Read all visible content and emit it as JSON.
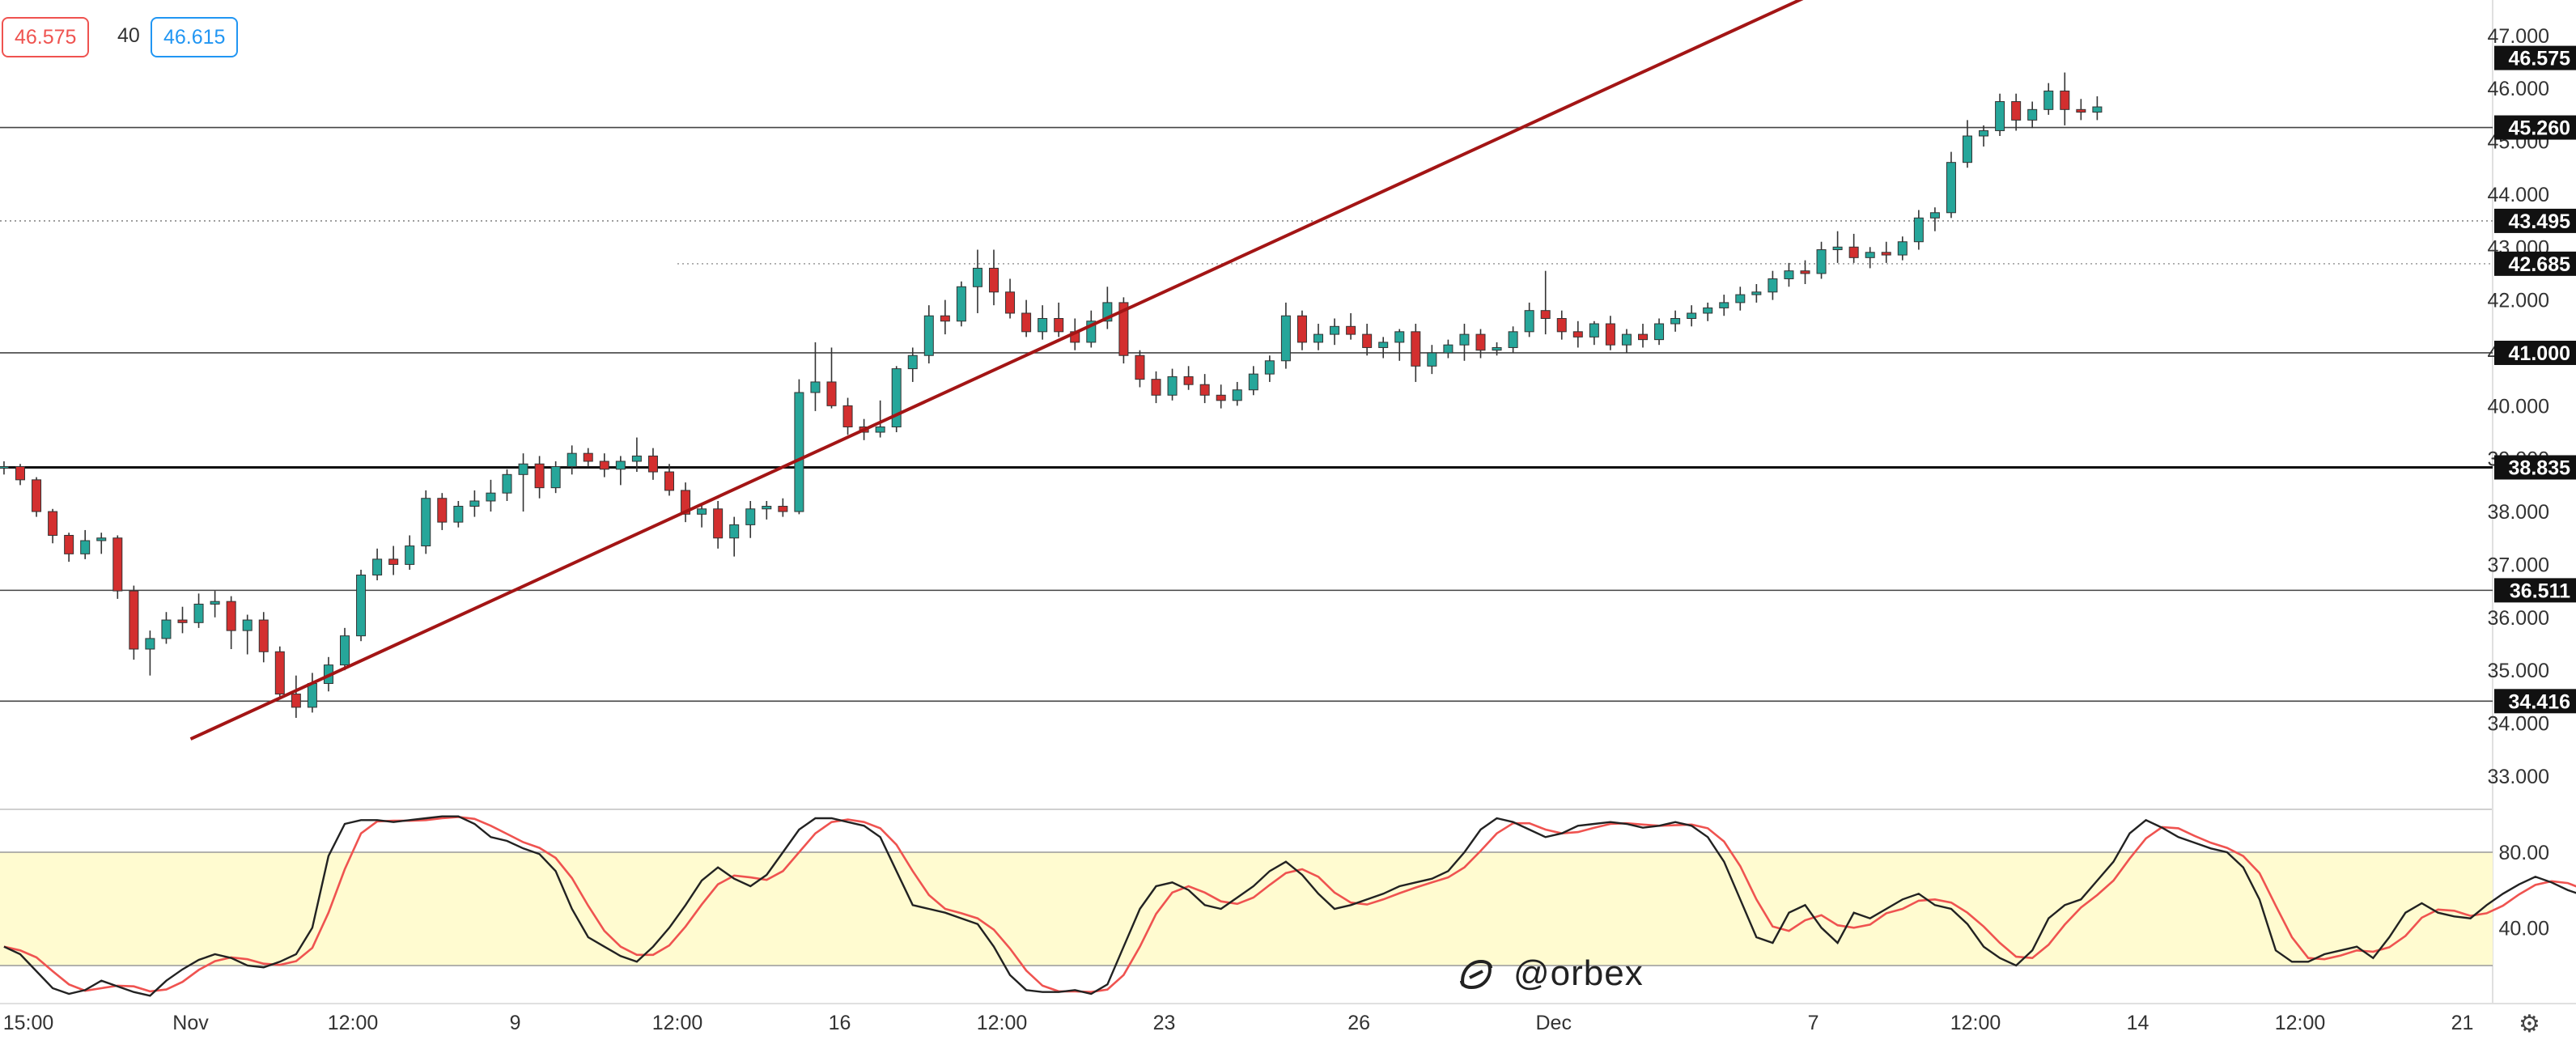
{
  "header": {
    "bid": "46.575",
    "spread": "40",
    "ask": "46.615"
  },
  "watermark": "@orbex",
  "icons": [
    "orbex-logo-icon",
    "settings-gear-icon"
  ],
  "colors": {
    "up_candle": "#26a69a",
    "down_candle": "#d32f2f",
    "trendline": "#a31515",
    "stoch_k": "#222222",
    "stoch_d": "#ef5350",
    "stoch_band": "#fffbd0",
    "bid": "#ef5350",
    "ask": "#2196f3"
  },
  "chart_data": [
    {
      "type": "candlestick",
      "title": "",
      "timeframe": "4H",
      "ylim": [
        32.6,
        47.9
      ],
      "yticks": [
        "33.000",
        "34.000",
        "35.000",
        "36.000",
        "37.000",
        "38.000",
        "39.000",
        "40.000",
        "41.000",
        "42.000",
        "43.000",
        "44.000",
        "45.000",
        "46.000",
        "47.000"
      ],
      "xticks": [
        {
          "label": "15:00",
          "t": 1.5
        },
        {
          "label": "Nov",
          "t": 11.5
        },
        {
          "label": "12:00",
          "t": 21.5
        },
        {
          "label": "9",
          "t": 31.5
        },
        {
          "label": "12:00",
          "t": 41.5
        },
        {
          "label": "16",
          "t": 51.5
        },
        {
          "label": "12:00",
          "t": 61.5
        },
        {
          "label": "23",
          "t": 71.5
        },
        {
          "label": "26",
          "t": 83.5
        },
        {
          "label": "Dec",
          "t": 95.5
        },
        {
          "label": "7",
          "t": 111.5
        },
        {
          "label": "12:00",
          "t": 121.5
        },
        {
          "label": "14",
          "t": 131.5
        },
        {
          "label": "12:00",
          "t": 141.5
        },
        {
          "label": "21",
          "t": 151.5
        }
      ],
      "level_labels": [
        {
          "value": 46.575,
          "label": "46.575"
        },
        {
          "value": 45.26,
          "label": "45.260"
        },
        {
          "value": 43.495,
          "label": "43.495"
        },
        {
          "value": 42.685,
          "label": "42.685"
        },
        {
          "value": 41.0,
          "label": "41.000"
        },
        {
          "value": 38.835,
          "label": "38.835"
        },
        {
          "value": 36.511,
          "label": "36.511"
        },
        {
          "value": 34.416,
          "label": "34.416"
        }
      ],
      "horizontal_lines": [
        {
          "value": 45.26,
          "style": "solid"
        },
        {
          "value": 43.495,
          "style": "dotted"
        },
        {
          "value": 41.0,
          "style": "solid"
        },
        {
          "value": 38.835,
          "style": "solid-bold"
        },
        {
          "value": 36.511,
          "style": "solid"
        },
        {
          "value": 34.416,
          "style": "solid"
        }
      ],
      "short_dotted_line": {
        "value": 42.685,
        "from_t": 41.5
      },
      "trendline": {
        "from": [
          11.5,
          33.7
        ],
        "to": [
          113,
          48.0
        ]
      },
      "candles": [
        [
          38.85,
          38.95,
          38.7,
          38.85
        ],
        [
          38.85,
          38.9,
          38.5,
          38.6
        ],
        [
          38.6,
          38.65,
          37.9,
          38.0
        ],
        [
          38.0,
          38.05,
          37.4,
          37.55
        ],
        [
          37.55,
          37.6,
          37.05,
          37.2
        ],
        [
          37.2,
          37.65,
          37.1,
          37.45
        ],
        [
          37.45,
          37.6,
          37.2,
          37.5
        ],
        [
          37.5,
          37.55,
          36.35,
          36.5
        ],
        [
          36.5,
          36.6,
          35.2,
          35.4
        ],
        [
          35.4,
          35.75,
          34.9,
          35.6
        ],
        [
          35.6,
          36.1,
          35.5,
          35.95
        ],
        [
          35.95,
          36.2,
          35.7,
          35.9
        ],
        [
          35.9,
          36.45,
          35.8,
          36.25
        ],
        [
          36.25,
          36.5,
          36.0,
          36.3
        ],
        [
          36.3,
          36.4,
          35.4,
          35.75
        ],
        [
          35.75,
          36.05,
          35.3,
          35.95
        ],
        [
          35.95,
          36.1,
          35.15,
          35.35
        ],
        [
          35.35,
          35.45,
          34.45,
          34.55
        ],
        [
          34.55,
          34.9,
          34.1,
          34.3
        ],
        [
          34.3,
          34.95,
          34.2,
          34.75
        ],
        [
          34.75,
          35.25,
          34.6,
          35.1
        ],
        [
          35.1,
          35.8,
          35.0,
          35.65
        ],
        [
          35.65,
          36.9,
          35.55,
          36.8
        ],
        [
          36.8,
          37.3,
          36.7,
          37.1
        ],
        [
          37.1,
          37.35,
          36.8,
          37.0
        ],
        [
          37.0,
          37.55,
          36.9,
          37.35
        ],
        [
          37.35,
          38.4,
          37.2,
          38.25
        ],
        [
          38.25,
          38.35,
          37.65,
          37.8
        ],
        [
          37.8,
          38.2,
          37.7,
          38.1
        ],
        [
          38.1,
          38.4,
          37.9,
          38.2
        ],
        [
          38.2,
          38.6,
          38.0,
          38.35
        ],
        [
          38.35,
          38.8,
          38.2,
          38.7
        ],
        [
          38.7,
          39.1,
          38.0,
          38.9
        ],
        [
          38.9,
          39.05,
          38.25,
          38.45
        ],
        [
          38.45,
          38.95,
          38.35,
          38.85
        ],
        [
          38.85,
          39.25,
          38.7,
          39.1
        ],
        [
          39.1,
          39.2,
          38.85,
          38.95
        ],
        [
          38.95,
          39.1,
          38.65,
          38.8
        ],
        [
          38.8,
          39.05,
          38.5,
          38.95
        ],
        [
          38.95,
          39.4,
          38.75,
          39.05
        ],
        [
          39.05,
          39.2,
          38.6,
          38.75
        ],
        [
          38.75,
          38.9,
          38.3,
          38.4
        ],
        [
          38.4,
          38.55,
          37.8,
          37.95
        ],
        [
          37.95,
          38.15,
          37.7,
          38.05
        ],
        [
          38.05,
          38.2,
          37.3,
          37.5
        ],
        [
          37.5,
          37.9,
          37.15,
          37.75
        ],
        [
          37.75,
          38.2,
          37.5,
          38.05
        ],
        [
          38.05,
          38.2,
          37.85,
          38.1
        ],
        [
          38.1,
          38.25,
          37.9,
          38.0
        ],
        [
          38.0,
          40.5,
          37.95,
          40.25
        ],
        [
          40.25,
          41.2,
          39.9,
          40.45
        ],
        [
          40.45,
          41.1,
          39.95,
          40.0
        ],
        [
          40.0,
          40.15,
          39.45,
          39.6
        ],
        [
          39.6,
          39.75,
          39.35,
          39.5
        ],
        [
          39.5,
          40.1,
          39.4,
          39.6
        ],
        [
          39.6,
          40.75,
          39.5,
          40.7
        ],
        [
          40.7,
          41.1,
          40.45,
          40.95
        ],
        [
          40.95,
          41.9,
          40.8,
          41.7
        ],
        [
          41.7,
          42.0,
          41.35,
          41.6
        ],
        [
          41.6,
          42.35,
          41.5,
          42.25
        ],
        [
          42.25,
          42.95,
          41.75,
          42.6
        ],
        [
          42.6,
          42.95,
          41.9,
          42.15
        ],
        [
          42.15,
          42.4,
          41.65,
          41.75
        ],
        [
          41.75,
          42.0,
          41.3,
          41.4
        ],
        [
          41.4,
          41.9,
          41.25,
          41.65
        ],
        [
          41.65,
          41.95,
          41.3,
          41.4
        ],
        [
          41.4,
          41.65,
          41.05,
          41.2
        ],
        [
          41.2,
          41.8,
          41.1,
          41.6
        ],
        [
          41.6,
          42.25,
          41.45,
          41.95
        ],
        [
          41.95,
          42.05,
          40.8,
          40.95
        ],
        [
          40.95,
          41.05,
          40.35,
          40.5
        ],
        [
          40.5,
          40.65,
          40.05,
          40.2
        ],
        [
          40.2,
          40.7,
          40.1,
          40.55
        ],
        [
          40.55,
          40.75,
          40.3,
          40.4
        ],
        [
          40.4,
          40.6,
          40.05,
          40.2
        ],
        [
          40.2,
          40.4,
          39.95,
          40.1
        ],
        [
          40.1,
          40.45,
          40.0,
          40.3
        ],
        [
          40.3,
          40.75,
          40.2,
          40.6
        ],
        [
          40.6,
          40.95,
          40.45,
          40.85
        ],
        [
          40.85,
          41.95,
          40.7,
          41.7
        ],
        [
          41.7,
          41.8,
          41.05,
          41.2
        ],
        [
          41.2,
          41.55,
          41.05,
          41.35
        ],
        [
          41.35,
          41.65,
          41.15,
          41.5
        ],
        [
          41.5,
          41.75,
          41.25,
          41.35
        ],
        [
          41.35,
          41.55,
          40.95,
          41.1
        ],
        [
          41.1,
          41.3,
          40.9,
          41.2
        ],
        [
          41.2,
          41.45,
          40.85,
          41.4
        ],
        [
          41.4,
          41.55,
          40.45,
          40.75
        ],
        [
          40.75,
          41.15,
          40.6,
          41.0
        ],
        [
          41.0,
          41.25,
          40.9,
          41.15
        ],
        [
          41.15,
          41.55,
          40.85,
          41.35
        ],
        [
          41.35,
          41.45,
          40.9,
          41.05
        ],
        [
          41.05,
          41.2,
          40.95,
          41.1
        ],
        [
          41.1,
          41.5,
          41.0,
          41.4
        ],
        [
          41.4,
          41.95,
          41.3,
          41.8
        ],
        [
          41.8,
          42.55,
          41.35,
          41.65
        ],
        [
          41.65,
          41.8,
          41.25,
          41.4
        ],
        [
          41.4,
          41.6,
          41.1,
          41.3
        ],
        [
          41.3,
          41.6,
          41.15,
          41.55
        ],
        [
          41.55,
          41.7,
          41.05,
          41.15
        ],
        [
          41.15,
          41.45,
          41.0,
          41.35
        ],
        [
          41.35,
          41.55,
          41.1,
          41.25
        ],
        [
          41.25,
          41.65,
          41.15,
          41.55
        ],
        [
          41.55,
          41.8,
          41.4,
          41.65
        ],
        [
          41.65,
          41.9,
          41.5,
          41.75
        ],
        [
          41.75,
          41.95,
          41.6,
          41.85
        ],
        [
          41.85,
          42.1,
          41.7,
          41.95
        ],
        [
          41.95,
          42.25,
          41.8,
          42.1
        ],
        [
          42.1,
          42.3,
          41.95,
          42.15
        ],
        [
          42.15,
          42.55,
          42.0,
          42.4
        ],
        [
          42.4,
          42.7,
          42.25,
          42.55
        ],
        [
          42.55,
          42.75,
          42.3,
          42.5
        ],
        [
          42.5,
          43.1,
          42.4,
          42.95
        ],
        [
          42.95,
          43.3,
          42.7,
          43.0
        ],
        [
          43.0,
          43.25,
          42.7,
          42.8
        ],
        [
          42.8,
          43.0,
          42.6,
          42.9
        ],
        [
          42.9,
          43.1,
          42.7,
          42.85
        ],
        [
          42.85,
          43.2,
          42.75,
          43.1
        ],
        [
          43.1,
          43.7,
          42.95,
          43.55
        ],
        [
          43.55,
          43.75,
          43.3,
          43.65
        ],
        [
          43.65,
          44.8,
          43.55,
          44.6
        ],
        [
          44.6,
          45.4,
          44.5,
          45.1
        ],
        [
          45.1,
          45.3,
          44.9,
          45.2
        ],
        [
          45.2,
          45.9,
          45.1,
          45.75
        ],
        [
          45.75,
          45.9,
          45.2,
          45.4
        ],
        [
          45.4,
          45.75,
          45.25,
          45.6
        ],
        [
          45.6,
          46.1,
          45.5,
          45.95
        ],
        [
          45.95,
          46.3,
          45.3,
          45.6
        ],
        [
          45.6,
          45.8,
          45.4,
          45.55
        ],
        [
          45.55,
          45.85,
          45.4,
          45.65
        ]
      ],
      "stochastic": {
        "ylim": [
          0,
          100
        ],
        "levels": [
          80,
          20
        ],
        "ytick_labels": [
          {
            "value": 80,
            "label": "80.00"
          },
          {
            "value": 40,
            "label": "40.00"
          }
        ],
        "k_values": [
          30,
          26,
          17,
          8,
          5,
          7,
          12,
          9,
          6,
          4,
          12,
          18,
          23,
          26,
          24,
          20,
          19,
          22,
          26,
          40,
          78,
          95,
          97,
          97,
          96,
          97,
          98,
          99,
          99,
          95,
          88,
          86,
          82,
          79,
          70,
          50,
          35,
          30,
          25,
          22,
          30,
          40,
          52,
          65,
          72,
          66,
          62,
          68,
          80,
          92,
          98,
          98,
          96,
          94,
          88,
          70,
          52,
          50,
          48,
          45,
          42,
          30,
          15,
          7,
          6,
          6,
          7,
          5,
          10,
          30,
          50,
          62,
          64,
          60,
          52,
          50,
          56,
          62,
          70,
          75,
          68,
          58,
          50,
          52,
          55,
          58,
          62,
          64,
          66,
          70,
          80,
          92,
          98,
          96,
          92,
          88,
          90,
          94,
          95,
          96,
          95,
          93,
          94,
          96,
          94,
          88,
          75,
          55,
          35,
          32,
          48,
          52,
          40,
          32,
          48,
          45,
          50,
          55,
          58,
          52,
          50,
          42,
          30,
          24,
          20,
          28,
          45,
          52,
          55,
          65,
          75,
          90,
          97,
          93,
          88,
          85,
          82,
          80,
          72,
          55,
          28,
          22,
          22,
          26,
          28,
          30,
          24,
          35,
          48,
          53,
          48,
          46,
          45,
          52,
          58,
          63,
          67,
          64,
          60,
          57,
          55,
          53,
          54,
          57,
          59,
          62,
          66
        ]
      }
    }
  ]
}
